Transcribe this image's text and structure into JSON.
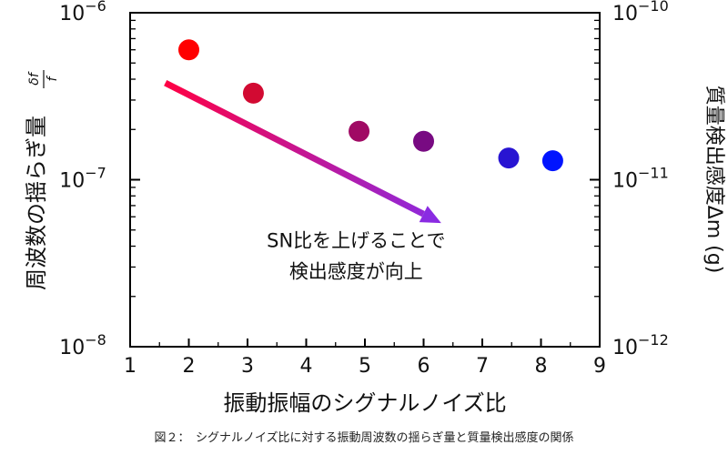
{
  "chart_data": {
    "type": "scatter",
    "x_axis": {
      "label": "振動振幅のシグナルノイズ比",
      "range": [
        1,
        9
      ],
      "ticks": [
        1,
        2,
        3,
        4,
        5,
        6,
        7,
        8,
        9
      ],
      "tick_labels": [
        "1",
        "2",
        "3",
        "4",
        "5",
        "6",
        "7",
        "8",
        "9"
      ]
    },
    "y_axis_left": {
      "label": "周波数の揺らぎ量",
      "label_fraction": {
        "numerator": "δf",
        "denominator": "f"
      },
      "scale": "log",
      "range": [
        1e-08,
        1e-06
      ],
      "tick_labels": [
        {
          "value": 1e-08,
          "base": "10",
          "exp": "−8"
        },
        {
          "value": 1e-07,
          "base": "10",
          "exp": "−7"
        },
        {
          "value": 1e-06,
          "base": "10",
          "exp": "−6"
        }
      ]
    },
    "y_axis_right": {
      "label": "質量検出感度Δm (g)",
      "scale": "log",
      "range": [
        1e-12,
        1e-10
      ],
      "tick_labels": [
        {
          "value": 1e-12,
          "base": "10",
          "exp": "−12"
        },
        {
          "value": 1e-11,
          "base": "10",
          "exp": "−11"
        },
        {
          "value": 1e-10,
          "base": "10",
          "exp": "−10"
        }
      ]
    },
    "points": [
      {
        "x": 2.0,
        "y": 6e-07,
        "color": "#ff0000"
      },
      {
        "x": 3.1,
        "y": 3.3e-07,
        "color": "#d20a32"
      },
      {
        "x": 4.9,
        "y": 1.95e-07,
        "color": "#a00a64"
      },
      {
        "x": 6.0,
        "y": 1.7e-07,
        "color": "#780a82"
      },
      {
        "x": 7.45,
        "y": 1.35e-07,
        "color": "#2814d2"
      },
      {
        "x": 8.2,
        "y": 1.3e-07,
        "color": "#0014ff"
      }
    ],
    "arrow": {
      "from": {
        "x": 1.6,
        "y": 3.8e-07
      },
      "to": {
        "x": 6.3,
        "y": 5.5e-08
      },
      "color_start": "#ff0044",
      "color_end": "#8a2be2"
    },
    "annotation": {
      "lines": [
        "SN比を上げることで",
        "検出感度が向上"
      ],
      "position": {
        "x": 4.85,
        "y": 3.4e-08
      }
    },
    "grid": false
  },
  "caption": "図２：　シグナルノイズ比に対する振動周波数の揺らぎ量と質量検出感度の関係"
}
